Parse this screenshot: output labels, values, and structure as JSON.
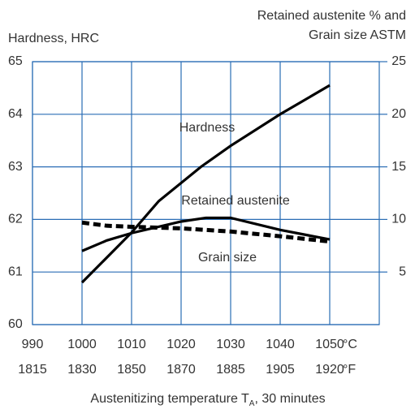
{
  "chart_data": {
    "type": "line",
    "y_label": "Hardness, HRC",
    "y2_label": [
      "Retained austenite % and",
      "Grain size ASTM"
    ],
    "x_label_parts": [
      "Austenitizing temperature T",
      "A",
      ", 30 minutes"
    ],
    "x_unit": "°C",
    "x2_unit": "°F",
    "xlim": [
      990,
      1060
    ],
    "xticks": [
      990,
      1000,
      1010,
      1020,
      1030,
      1040,
      1050
    ],
    "x2_tick_labels": [
      1815,
      1830,
      1850,
      1870,
      1885,
      1905,
      1920
    ],
    "ylim": [
      60,
      65
    ],
    "yticks": [
      60,
      61,
      62,
      63,
      64,
      65
    ],
    "y2lim": [
      0,
      25
    ],
    "y2ticks": [
      5,
      10,
      15,
      20,
      25
    ],
    "grid": true,
    "grid_color": "#2a6db5",
    "series": [
      {
        "name": "Hardness",
        "color": "#000000",
        "dashed": false,
        "x": [
          1000,
          1010,
          1015.5,
          1024,
          1030,
          1040,
          1050
        ],
        "values": [
          60.8,
          61.75,
          62.35,
          63.0,
          63.4,
          64.0,
          64.55
        ]
      },
      {
        "name": "Retained austenite",
        "color": "#000000",
        "dashed": false,
        "axis": "y2",
        "x": [
          1000,
          1005,
          1010,
          1020,
          1025,
          1030,
          1040,
          1050
        ],
        "values": [
          7.0,
          8.0,
          8.7,
          9.8,
          10.15,
          10.15,
          9.0,
          8.1
        ]
      },
      {
        "name": "Grain size",
        "color": "#000000",
        "dashed": true,
        "axis": "y2",
        "x": [
          1000,
          1005,
          1010,
          1020,
          1030,
          1040,
          1050
        ],
        "values": [
          9.7,
          9.4,
          9.3,
          9.15,
          8.85,
          8.4,
          7.9
        ]
      }
    ]
  }
}
